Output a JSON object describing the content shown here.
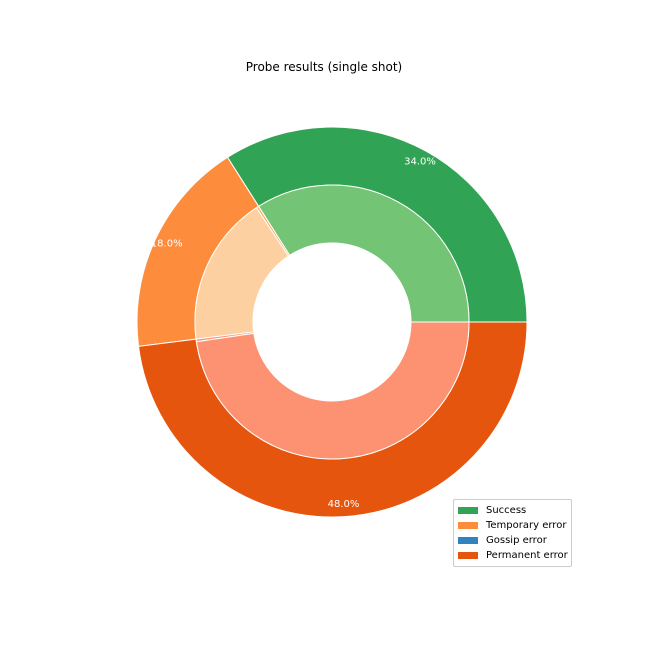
{
  "chart_data": {
    "type": "pie",
    "title": "Probe results (single shot)",
    "outer_ring": {
      "categories": [
        "Success",
        "Temporary error",
        "Gossip error",
        "Permanent error"
      ],
      "values": [
        34.0,
        18.0,
        0.0,
        48.0
      ],
      "labels": [
        "34.0%",
        "18.0%",
        "",
        "48.0%"
      ],
      "colors": [
        "#31a354",
        "#fd8d3c",
        "#3182bd",
        "#e6550d"
      ]
    },
    "inner_ring": {
      "values": [
        34.0,
        0.3,
        17.7,
        0.3,
        47.7
      ],
      "colors": [
        "#74c476",
        "#fdae6b",
        "#fdd0a2",
        "#fc9272",
        "#fc9272"
      ]
    },
    "legend": {
      "placement": "lower-right",
      "items": [
        {
          "label": "Success",
          "color": "#31a354"
        },
        {
          "label": "Temporary error",
          "color": "#fd8d3c"
        },
        {
          "label": "Gossip error",
          "color": "#3182bd"
        },
        {
          "label": "Permanent error",
          "color": "#e6550d"
        }
      ]
    }
  }
}
